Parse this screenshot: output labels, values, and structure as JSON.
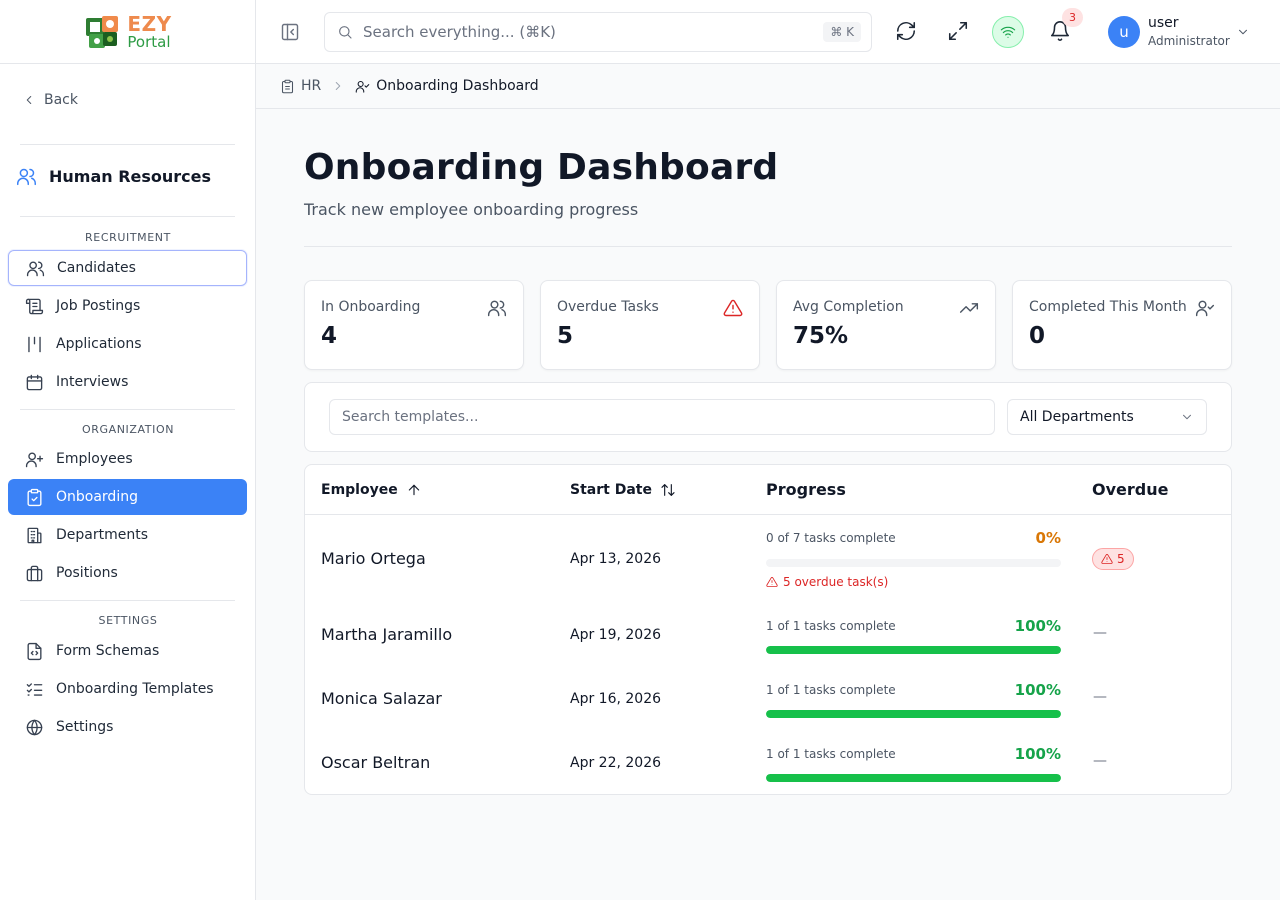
{
  "brand": {
    "name_top": "EZY",
    "name_bottom": "Portal"
  },
  "sidebar": {
    "back_label": "Back",
    "module_title": "Human Resources",
    "sections": [
      {
        "label": "RECRUITMENT",
        "items": [
          {
            "label": "Candidates",
            "icon": "users-icon"
          },
          {
            "label": "Job Postings",
            "icon": "scroll-icon"
          },
          {
            "label": "Applications",
            "icon": "columns-icon"
          },
          {
            "label": "Interviews",
            "icon": "calendar-icon"
          }
        ]
      },
      {
        "label": "ORGANIZATION",
        "items": [
          {
            "label": "Employees",
            "icon": "user-plus-icon"
          },
          {
            "label": "Onboarding",
            "icon": "clipboard-check-icon"
          },
          {
            "label": "Departments",
            "icon": "building-icon"
          },
          {
            "label": "Positions",
            "icon": "briefcase-icon"
          }
        ]
      },
      {
        "label": "SETTINGS",
        "items": [
          {
            "label": "Form Schemas",
            "icon": "file-code-icon"
          },
          {
            "label": "Onboarding Templates",
            "icon": "list-checks-icon"
          },
          {
            "label": "Settings",
            "icon": "globe-icon"
          }
        ]
      }
    ],
    "active_item": "Onboarding",
    "focused_item": "Candidates"
  },
  "topbar": {
    "search_placeholder": "Search everything... (⌘K)",
    "search_shortcut": "⌘ K",
    "notification_count": "3",
    "user": {
      "initial": "u",
      "name": "user",
      "role": "Administrator"
    }
  },
  "breadcrumb": {
    "parent": "HR",
    "current": "Onboarding Dashboard"
  },
  "page": {
    "title": "Onboarding Dashboard",
    "subtitle": "Track new employee onboarding progress"
  },
  "stats": [
    {
      "label": "In Onboarding",
      "value": "4",
      "icon": "users-icon"
    },
    {
      "label": "Overdue Tasks",
      "value": "5",
      "icon": "alert-triangle-icon",
      "icon_color": "#dc2626"
    },
    {
      "label": "Avg Completion",
      "value": "75%",
      "icon": "trending-up-icon"
    },
    {
      "label": "Completed This Month",
      "value": "0",
      "icon": "user-check-icon"
    }
  ],
  "filters": {
    "search_placeholder": "Search templates...",
    "department_selected": "All Departments"
  },
  "table": {
    "columns": {
      "employee": "Employee",
      "start_date": "Start Date",
      "progress": "Progress",
      "overdue": "Overdue"
    },
    "rows": [
      {
        "name": "Mario Ortega",
        "start_date": "Apr 13, 2026",
        "progress_text": "0 of 7 tasks complete",
        "percent_label": "0%",
        "percent": 0,
        "overdue_note": "5 overdue task(s)",
        "overdue_count": "5",
        "overdue_empty": ""
      },
      {
        "name": "Martha Jaramillo",
        "start_date": "Apr 19, 2026",
        "progress_text": "1 of 1 tasks complete",
        "percent_label": "100%",
        "percent": 100,
        "overdue_note": "",
        "overdue_count": "",
        "overdue_empty": "—"
      },
      {
        "name": "Monica Salazar",
        "start_date": "Apr 16, 2026",
        "progress_text": "1 of 1 tasks complete",
        "percent_label": "100%",
        "percent": 100,
        "overdue_note": "",
        "overdue_count": "",
        "overdue_empty": "—"
      },
      {
        "name": "Oscar Beltran",
        "start_date": "Apr 22, 2026",
        "progress_text": "1 of 1 tasks complete",
        "percent_label": "100%",
        "percent": 100,
        "overdue_note": "",
        "overdue_count": "",
        "overdue_empty": "—"
      }
    ]
  },
  "colors": {
    "accent": "#3b82f6",
    "success": "#16c04a",
    "warning": "#d97706",
    "danger": "#dc2626"
  }
}
